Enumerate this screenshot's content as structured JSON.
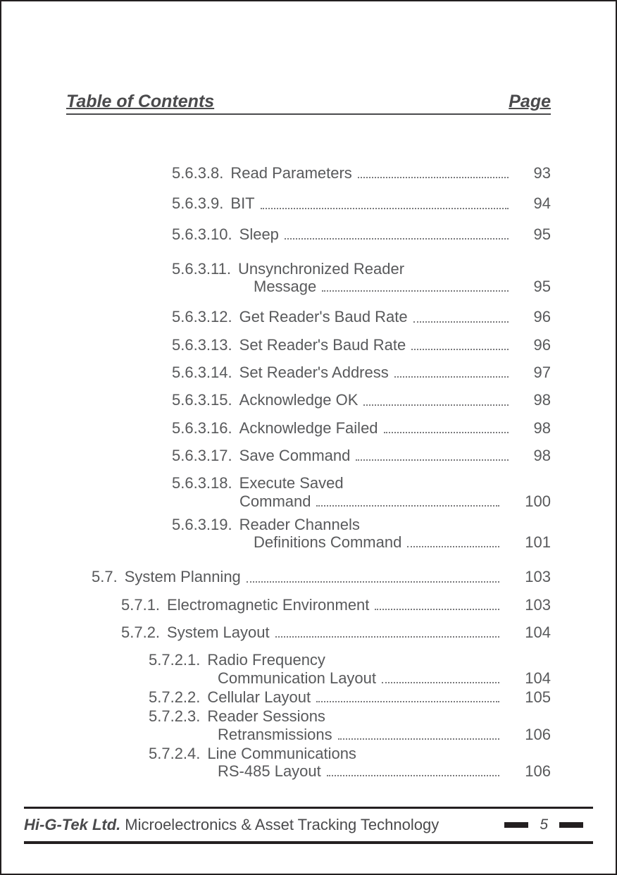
{
  "header": {
    "left": "Table of Contents",
    "right": "Page"
  },
  "entries": [
    {
      "indent": "ind-a",
      "num": "5.6.3.8.",
      "title": "Read Parameters",
      "page": "93",
      "gap": "gap-lg",
      "contIndent": 0
    },
    {
      "indent": "ind-a",
      "num": "5.6.3.9.",
      "title": "BIT",
      "page": "94",
      "gap": "gap-lg",
      "contIndent": 0
    },
    {
      "indent": "ind-a",
      "num": "5.6.3.10.",
      "title": "Sleep",
      "page": "95",
      "gap": "gap-xl",
      "contIndent": 0
    },
    {
      "indent": "ind-a",
      "num": "5.6.3.11.",
      "title": "Unsynchronized Reader",
      "title2": "Message",
      "page": "95",
      "gap": "gap-lg",
      "contIndent": 116
    },
    {
      "indent": "ind-a",
      "num": "5.6.3.12.",
      "title": "Get Reader's Baud Rate",
      "page": "96",
      "gap": "gap-md",
      "contIndent": 0
    },
    {
      "indent": "ind-a",
      "num": "5.6.3.13.",
      "title": "Set Reader's Baud Rate",
      "page": "96",
      "gap": "gap-md",
      "contIndent": 0
    },
    {
      "indent": "ind-a",
      "num": "5.6.3.14.",
      "title": "Set Reader's Address",
      "page": "97",
      "gap": "gap-md",
      "contIndent": 0
    },
    {
      "indent": "ind-a",
      "num": "5.6.3.15.",
      "title": "Acknowledge OK",
      "page": "98",
      "gap": "gap-md",
      "contIndent": 0
    },
    {
      "indent": "ind-a",
      "num": "5.6.3.16.",
      "title": "Acknowledge Failed",
      "page": "98",
      "gap": "gap-md",
      "contIndent": 0
    },
    {
      "indent": "ind-a",
      "num": "5.6.3.17.",
      "title": "Save Command",
      "page": "98",
      "gap": "gap-md",
      "contIndent": 0
    },
    {
      "indent": "ind-a",
      "num": "5.6.3.18.",
      "title": "Execute Saved",
      "title2": "Command",
      "page": "100",
      "gap": "gap-sm",
      "contIndent": 96
    },
    {
      "indent": "ind-a",
      "num": "5.6.3.19.",
      "title": "Reader Channels",
      "title2": "Definitions Command",
      "page": "101",
      "gap": "gap-xl",
      "contIndent": 116
    },
    {
      "indent": "ind-b",
      "num": "5.7.",
      "title": "System Planning",
      "page": "103",
      "gap": "gap-md",
      "contIndent": 0,
      "numPad": 0
    },
    {
      "indent": "ind-c",
      "num": "5.7.1.",
      "title": "Electromagnetic Environment",
      "page": "103",
      "gap": "gap-md",
      "contIndent": 0
    },
    {
      "indent": "ind-c",
      "num": "5.7.2.",
      "title": "System Layout",
      "page": "104",
      "gap": "gap-md",
      "contIndent": 0
    },
    {
      "indent": "ind-d",
      "num": "5.7.2.1.",
      "title": "Radio Frequency",
      "title2": "Communication Layout",
      "page": "104",
      "gap": "gap-xs",
      "contIndent": 98
    },
    {
      "indent": "ind-d",
      "num": "5.7.2.2.",
      "title": "Cellular Layout",
      "page": "105",
      "gap": "gap-xs",
      "contIndent": 0
    },
    {
      "indent": "ind-d",
      "num": "5.7.2.3.",
      "title": "Reader Sessions",
      "title2": "Retransmissions",
      "page": "106",
      "gap": "gap-xs",
      "contIndent": 98
    },
    {
      "indent": "ind-d",
      "num": "5.7.2.4.",
      "title": "Line Communications",
      "title2": "RS-485 Layout",
      "page": "106",
      "gap": "gap-xs",
      "contIndent": 98
    }
  ],
  "footer": {
    "company": "Hi-G-Tek Ltd.",
    "tagline": "Microelectronics & Asset Tracking Technology",
    "pageNumber": "5"
  },
  "colors": {
    "text": "#58595b",
    "border": "#231f20",
    "leader": "#7a7a7c"
  }
}
